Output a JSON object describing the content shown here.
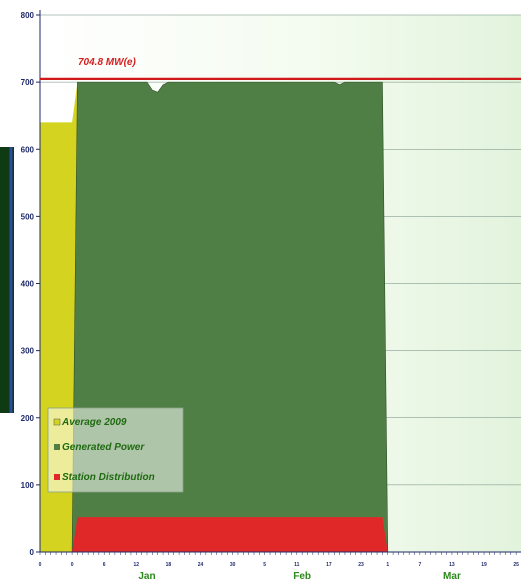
{
  "chart_data": {
    "type": "area",
    "ylim": [
      0,
      800
    ],
    "yticks": [
      0,
      100,
      200,
      300,
      400,
      500,
      600,
      700,
      800
    ],
    "xlim": [
      0,
      84
    ],
    "xtick_labels": [
      "0",
      "0",
      "6",
      "12",
      "18",
      "24",
      "30",
      "5",
      "11",
      "17",
      "23",
      "1",
      "7",
      "13",
      "19",
      "25"
    ],
    "xtick_pos": [
      0,
      6,
      12,
      18,
      24,
      30,
      36,
      42,
      48,
      54,
      60,
      65,
      71,
      77,
      83,
      89
    ],
    "months": [
      {
        "label": "Jan",
        "x": 20
      },
      {
        "label": "Feb",
        "x": 49
      },
      {
        "label": "Mar",
        "x": 77
      }
    ],
    "reference_line": {
      "value": 704.8,
      "label": "704.8 MW(e)",
      "color": "#d01818"
    },
    "series": [
      {
        "name": "Average 2009",
        "color": "#d4d420",
        "x": [
          0,
          6,
          7
        ],
        "y": [
          640,
          640,
          700
        ]
      },
      {
        "name": "Generated Power",
        "color": "#4f7f44",
        "x": [
          6,
          7,
          8,
          20,
          21,
          22,
          23,
          24,
          55,
          56,
          57,
          58,
          64,
          65
        ],
        "y": [
          0,
          700,
          700,
          700,
          688,
          685,
          696,
          700,
          700,
          696,
          700,
          700,
          700,
          0
        ]
      },
      {
        "name": "Station Distribution",
        "color": "#e02828",
        "x": [
          6,
          7,
          64,
          65
        ],
        "y": [
          0,
          52,
          52,
          0
        ]
      }
    ],
    "legend_position": "bottom-left"
  },
  "colors": {
    "plot_background": "#eef8ea",
    "axis": "#1f2a6b",
    "gridline": "#6f8a7f"
  }
}
